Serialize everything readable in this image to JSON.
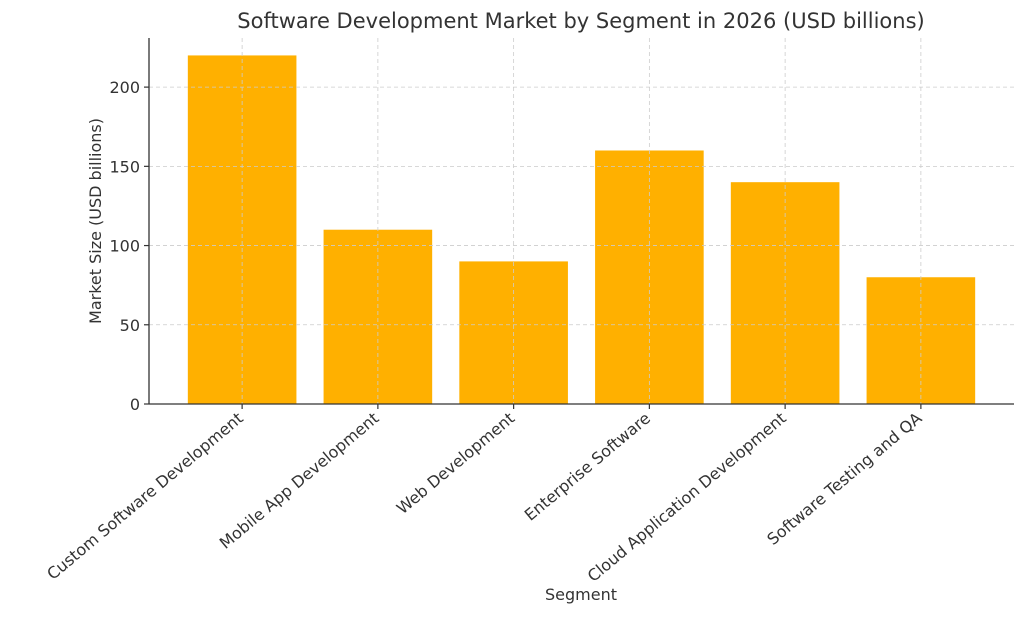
{
  "chart_data": {
    "type": "bar",
    "title": "Software Development Market by Segment in 2026 (USD billions)",
    "xlabel": "Segment",
    "ylabel": "Market Size (USD billions)",
    "categories": [
      "Custom Software Development",
      "Mobile App Development",
      "Web Development",
      "Enterprise Software",
      "Cloud Application Development",
      "Software Testing and QA"
    ],
    "values": [
      220,
      110,
      90,
      160,
      140,
      80
    ],
    "ylim": [
      0,
      231
    ],
    "yticks": [
      0,
      50,
      100,
      150,
      200
    ],
    "grid": true,
    "bar_color": "#FFB000",
    "axis_color": "#333333",
    "grid_color": "#cccccc"
  }
}
